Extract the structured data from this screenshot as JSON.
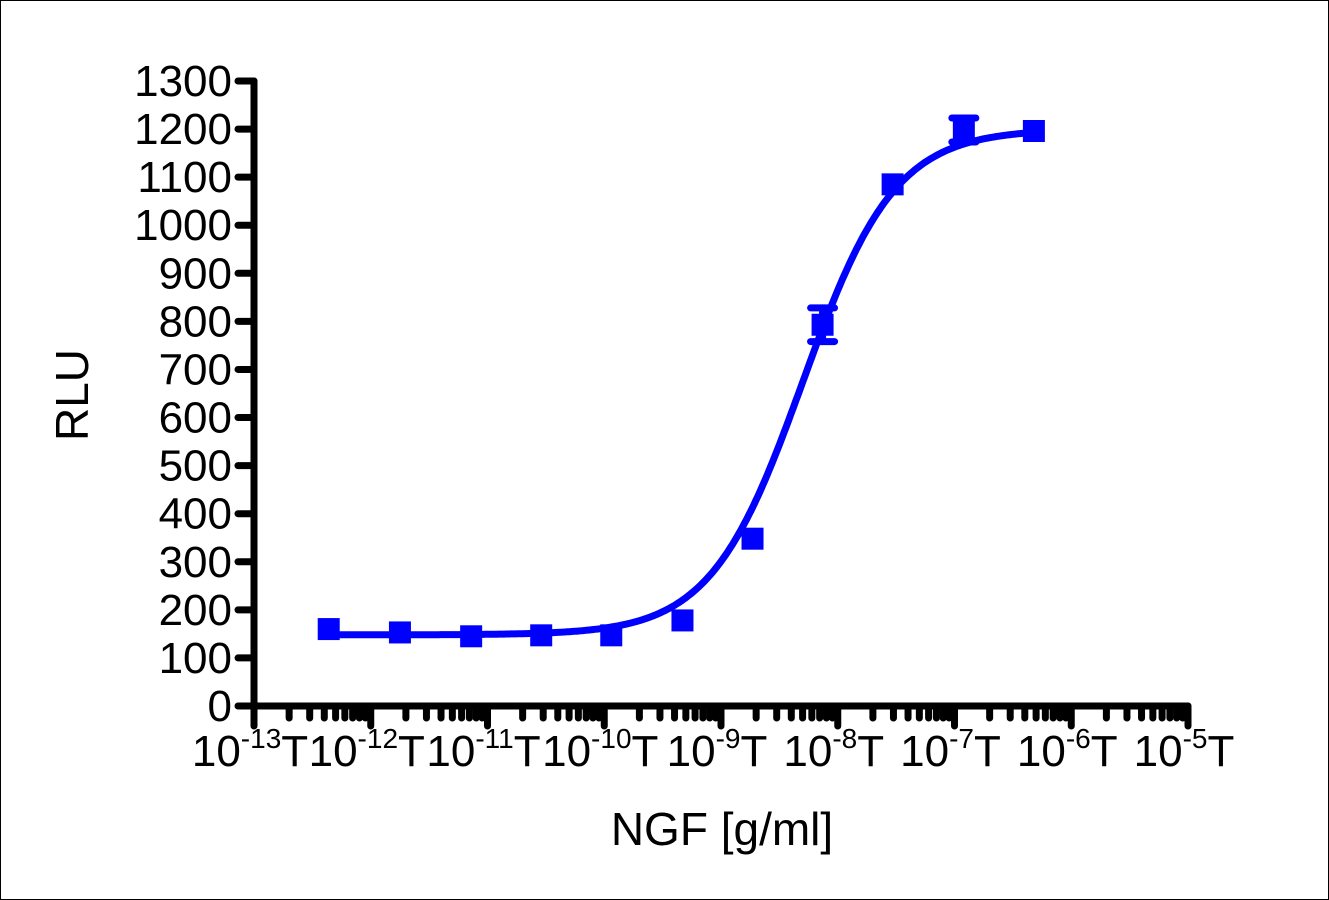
{
  "chart_data": {
    "type": "scatter",
    "title": "",
    "xlabel": "NGF [g/ml]",
    "ylabel": "RLU",
    "xscale": "log",
    "xlim_log10": [
      -13,
      -5
    ],
    "ylim": [
      0,
      1300
    ],
    "x_tick_labels": [
      {
        "base": "10",
        "exp": "-13",
        "suffix": "T"
      },
      {
        "base": "10",
        "exp": "-12",
        "suffix": "T"
      },
      {
        "base": "10",
        "exp": "-11",
        "suffix": "T"
      },
      {
        "base": "10",
        "exp": "-10",
        "suffix": "T"
      },
      {
        "base": "10",
        "exp": "-9",
        "suffix": "T"
      },
      {
        "base": "10",
        "exp": "-8",
        "suffix": "T"
      },
      {
        "base": "10",
        "exp": "-7",
        "suffix": "T"
      },
      {
        "base": "10",
        "exp": "-6",
        "suffix": "T"
      },
      {
        "base": "10",
        "exp": "-5",
        "suffix": "T"
      }
    ],
    "y_ticks": [
      0,
      100,
      200,
      300,
      400,
      500,
      600,
      700,
      800,
      900,
      1000,
      1100,
      1200,
      1300
    ],
    "grid": false,
    "legend": null,
    "color": "#0000ff",
    "series": [
      {
        "name": "NGF",
        "marker": "square",
        "fit": "sigmoidal dose-response (4PL)",
        "x_log10": [
          -12.36,
          -11.75,
          -11.14,
          -10.54,
          -9.94,
          -9.33,
          -8.73,
          -8.13,
          -7.53,
          -6.92,
          -6.32
        ],
        "values": [
          160,
          153,
          145,
          147,
          147,
          178,
          348,
          793,
          1085,
          1198,
          1196
        ],
        "error": [
          0,
          0,
          0,
          0,
          0,
          0,
          0,
          35,
          0,
          25,
          0
        ]
      }
    ],
    "fit_params": {
      "bottom": 148,
      "top": 1200,
      "log_ec50": -8.3,
      "hill": 1.1
    }
  }
}
